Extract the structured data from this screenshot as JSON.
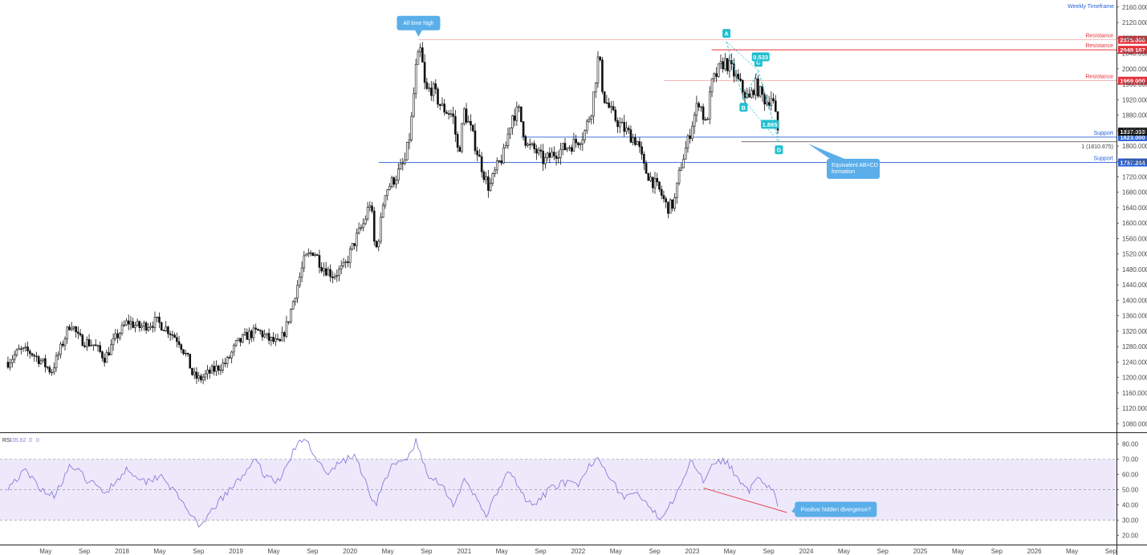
{
  "header": {
    "timeframe_label": "Weekly Timeframe"
  },
  "colors": {
    "resistance": "#e5313b",
    "support": "#2a62d9",
    "candle": "#111111",
    "pattern": "#22bfcf",
    "rsi_line": "#8c7ad8",
    "rsi_band": "#ede9fb",
    "divergence": "#e5313b",
    "callout": "#5aaee9",
    "current_price": "#111111"
  },
  "chart_data": [
    {
      "type": "candlestick",
      "title": "",
      "ylim": [
        1060,
        2170
      ],
      "y_ticks": [
        "2160.000",
        "2120.000",
        "2080.000",
        "2040.000",
        "2000.000",
        "1960.000",
        "1920.000",
        "1880.000",
        "1840.000",
        "1800.000",
        "1760.000",
        "1720.000",
        "1680.000",
        "1640.000",
        "1600.000",
        "1560.000",
        "1520.000",
        "1480.000",
        "1440.000",
        "1400.000",
        "1360.000",
        "1320.000",
        "1280.000",
        "1240.000",
        "1200.000",
        "1160.000",
        "1120.000",
        "1080.000"
      ],
      "x_ticks": [
        {
          "label": "May",
          "t": 2017.33
        },
        {
          "label": "Sep",
          "t": 2017.67
        },
        {
          "label": "2018",
          "t": 2018.0
        },
        {
          "label": "May",
          "t": 2018.33
        },
        {
          "label": "Sep",
          "t": 2018.67
        },
        {
          "label": "2019",
          "t": 2019.0
        },
        {
          "label": "May",
          "t": 2019.33
        },
        {
          "label": "Sep",
          "t": 2019.67
        },
        {
          "label": "2020",
          "t": 2020.0
        },
        {
          "label": "May",
          "t": 2020.33
        },
        {
          "label": "Sep",
          "t": 2020.67
        },
        {
          "label": "2021",
          "t": 2021.0
        },
        {
          "label": "May",
          "t": 2021.33
        },
        {
          "label": "Sep",
          "t": 2021.67
        },
        {
          "label": "2022",
          "t": 2022.0
        },
        {
          "label": "May",
          "t": 2022.33
        },
        {
          "label": "Sep",
          "t": 2022.67
        },
        {
          "label": "2023",
          "t": 2023.0
        },
        {
          "label": "May",
          "t": 2023.33
        },
        {
          "label": "Sep",
          "t": 2023.67
        },
        {
          "label": "2024",
          "t": 2024.0
        },
        {
          "label": "May",
          "t": 2024.33
        },
        {
          "label": "Sep",
          "t": 2024.67
        },
        {
          "label": "2025",
          "t": 2025.0
        },
        {
          "label": "May",
          "t": 2025.33
        },
        {
          "label": "Sep",
          "t": 2025.67
        },
        {
          "label": "2026",
          "t": 2026.0
        },
        {
          "label": "May",
          "t": 2026.33
        },
        {
          "label": "Sep",
          "t": 2026.67
        }
      ],
      "price_path": [
        [
          2017.0,
          1240
        ],
        [
          2017.1,
          1270
        ],
        [
          2017.2,
          1265
        ],
        [
          2017.3,
          1240
        ],
        [
          2017.38,
          1215
        ],
        [
          2017.45,
          1265
        ],
        [
          2017.55,
          1345
        ],
        [
          2017.62,
          1300
        ],
        [
          2017.75,
          1285
        ],
        [
          2017.85,
          1250
        ],
        [
          2017.95,
          1305
        ],
        [
          2018.05,
          1345
        ],
        [
          2018.15,
          1330
        ],
        [
          2018.3,
          1345
        ],
        [
          2018.4,
          1325
        ],
        [
          2018.5,
          1295
        ],
        [
          2018.58,
          1245
        ],
        [
          2018.62,
          1205
        ],
        [
          2018.68,
          1195
        ],
        [
          2018.78,
          1215
        ],
        [
          2018.92,
          1240
        ],
        [
          2019.0,
          1285
        ],
        [
          2019.1,
          1310
        ],
        [
          2019.2,
          1320
        ],
        [
          2019.28,
          1300
        ],
        [
          2019.38,
          1285
        ],
        [
          2019.45,
          1340
        ],
        [
          2019.52,
          1420
        ],
        [
          2019.6,
          1505
        ],
        [
          2019.68,
          1530
        ],
        [
          2019.75,
          1490
        ],
        [
          2019.85,
          1465
        ],
        [
          2019.95,
          1485
        ],
        [
          2020.05,
          1560
        ],
        [
          2020.12,
          1600
        ],
        [
          2020.18,
          1660
        ],
        [
          2020.22,
          1520
        ],
        [
          2020.26,
          1580
        ],
        [
          2020.3,
          1680
        ],
        [
          2020.4,
          1720
        ],
        [
          2020.48,
          1760
        ],
        [
          2020.53,
          1840
        ],
        [
          2020.58,
          2010
        ],
        [
          2020.62,
          2050
        ],
        [
          2020.66,
          1940
        ],
        [
          2020.72,
          1950
        ],
        [
          2020.8,
          1900
        ],
        [
          2020.9,
          1880
        ],
        [
          2020.95,
          1775
        ],
        [
          2021.0,
          1890
        ],
        [
          2021.05,
          1850
        ],
        [
          2021.12,
          1780
        ],
        [
          2021.18,
          1720
        ],
        [
          2021.22,
          1690
        ],
        [
          2021.28,
          1740
        ],
        [
          2021.35,
          1780
        ],
        [
          2021.42,
          1880
        ],
        [
          2021.48,
          1890
        ],
        [
          2021.55,
          1800
        ],
        [
          2021.62,
          1790
        ],
        [
          2021.7,
          1760
        ],
        [
          2021.78,
          1780
        ],
        [
          2021.85,
          1790
        ],
        [
          2021.92,
          1800
        ],
        [
          2021.98,
          1810
        ],
        [
          2022.05,
          1830
        ],
        [
          2022.12,
          1900
        ],
        [
          2022.18,
          2040
        ],
        [
          2022.22,
          1930
        ],
        [
          2022.3,
          1880
        ],
        [
          2022.38,
          1850
        ],
        [
          2022.45,
          1830
        ],
        [
          2022.52,
          1810
        ],
        [
          2022.58,
          1740
        ],
        [
          2022.65,
          1710
        ],
        [
          2022.72,
          1680
        ],
        [
          2022.78,
          1640
        ],
        [
          2022.84,
          1650
        ],
        [
          2022.9,
          1750
        ],
        [
          2022.96,
          1810
        ],
        [
          2023.0,
          1860
        ],
        [
          2023.06,
          1920
        ],
        [
          2023.12,
          1850
        ],
        [
          2023.17,
          1960
        ],
        [
          2023.22,
          1990
        ],
        [
          2023.28,
          2020
        ],
        [
          2023.34,
          2000
        ],
        [
          2023.38,
          1980
        ],
        [
          2023.45,
          1940
        ],
        [
          2023.5,
          1920
        ],
        [
          2023.55,
          1960
        ],
        [
          2023.6,
          1935
        ],
        [
          2023.65,
          1915
        ],
        [
          2023.7,
          1930
        ],
        [
          2023.75,
          1840
        ]
      ],
      "horizontal_levels": [
        {
          "label": "Resistance",
          "value": 2075.0,
          "value_label": "2075.000",
          "kind": "resistance",
          "start_t": 2020.6,
          "faint": true
        },
        {
          "label": "Resistance",
          "value": 2049.167,
          "value_label": "2049.167",
          "kind": "resistance",
          "start_t": 2023.17,
          "faint": false
        },
        {
          "label": "Resistance",
          "value": 1969.0,
          "value_label": "1969.000",
          "kind": "resistance",
          "start_t": 2022.75,
          "faint": true
        },
        {
          "label": "Support",
          "value": 1823.0,
          "value_label": "1823.000",
          "kind": "support",
          "start_t": 2021.5,
          "faint": false
        },
        {
          "label": "Support",
          "value": 1757.244,
          "value_label": "1757.244",
          "kind": "support",
          "start_t": 2020.25,
          "faint": false
        }
      ],
      "current_price": {
        "value": 1837.035,
        "value_label": "1837.035"
      },
      "fib_level": {
        "label": "1 (1810.875)",
        "value": 1810.875,
        "start_t": 2023.43
      },
      "abcd": {
        "points": [
          {
            "label": "A",
            "t": 2023.3,
            "y": 2070
          },
          {
            "label": "B",
            "t": 2023.45,
            "y": 1920
          },
          {
            "label": "C",
            "t": 2023.58,
            "y": 1995
          },
          {
            "label": "D",
            "t": 2023.76,
            "y": 1810
          }
        ],
        "ratios": [
          {
            "label": "0.533",
            "t": 2023.6,
            "y": 2030
          },
          {
            "label": "1.865",
            "t": 2023.68,
            "y": 1855
          }
        ]
      },
      "annotations": [
        {
          "text": "All time high",
          "t": 2020.6,
          "y": 2075
        },
        {
          "text": "Equivalent AB=CD formation",
          "t": 2023.76,
          "y": 1800
        }
      ]
    },
    {
      "type": "line",
      "title": "",
      "indicator_label": "RSI",
      "readout": [
        "35.62",
        "0",
        "0"
      ],
      "ylim": [
        14,
        87
      ],
      "y_ticks": [
        "80.00",
        "70.00",
        "60.00",
        "50.00",
        "40.00",
        "30.00",
        "20.00"
      ],
      "band_levels": [
        70,
        50,
        30
      ],
      "rsi_path": [
        [
          2017.0,
          52
        ],
        [
          2017.15,
          62
        ],
        [
          2017.3,
          50
        ],
        [
          2017.4,
          46
        ],
        [
          2017.55,
          66
        ],
        [
          2017.7,
          56
        ],
        [
          2017.85,
          48
        ],
        [
          2018.05,
          64
        ],
        [
          2018.2,
          55
        ],
        [
          2018.35,
          60
        ],
        [
          2018.5,
          44
        ],
        [
          2018.6,
          35
        ],
        [
          2018.68,
          23
        ],
        [
          2018.8,
          38
        ],
        [
          2018.95,
          50
        ],
        [
          2019.05,
          58
        ],
        [
          2019.15,
          70
        ],
        [
          2019.25,
          60
        ],
        [
          2019.38,
          55
        ],
        [
          2019.5,
          75
        ],
        [
          2019.6,
          84
        ],
        [
          2019.7,
          72
        ],
        [
          2019.8,
          58
        ],
        [
          2019.9,
          68
        ],
        [
          2020.05,
          72
        ],
        [
          2020.15,
          52
        ],
        [
          2020.22,
          40
        ],
        [
          2020.35,
          64
        ],
        [
          2020.5,
          70
        ],
        [
          2020.58,
          82
        ],
        [
          2020.68,
          58
        ],
        [
          2020.8,
          55
        ],
        [
          2020.9,
          40
        ],
        [
          2021.0,
          55
        ],
        [
          2021.1,
          45
        ],
        [
          2021.2,
          33
        ],
        [
          2021.3,
          50
        ],
        [
          2021.4,
          62
        ],
        [
          2021.5,
          48
        ],
        [
          2021.6,
          38
        ],
        [
          2021.72,
          48
        ],
        [
          2021.85,
          55
        ],
        [
          2022.0,
          52
        ],
        [
          2022.12,
          68
        ],
        [
          2022.18,
          72
        ],
        [
          2022.3,
          55
        ],
        [
          2022.4,
          45
        ],
        [
          2022.52,
          48
        ],
        [
          2022.62,
          37
        ],
        [
          2022.72,
          32
        ],
        [
          2022.82,
          42
        ],
        [
          2022.92,
          58
        ],
        [
          2023.0,
          69
        ],
        [
          2023.1,
          56
        ],
        [
          2023.2,
          70
        ],
        [
          2023.3,
          68
        ],
        [
          2023.4,
          58
        ],
        [
          2023.5,
          50
        ],
        [
          2023.58,
          57
        ],
        [
          2023.65,
          50
        ],
        [
          2023.7,
          52
        ],
        [
          2023.76,
          36
        ]
      ],
      "divergence_line": [
        [
          2023.1,
          51
        ],
        [
          2023.83,
          35
        ]
      ],
      "annotation": {
        "text": "Positive hidden divergence?",
        "t": 2023.9,
        "y": 41
      }
    }
  ]
}
